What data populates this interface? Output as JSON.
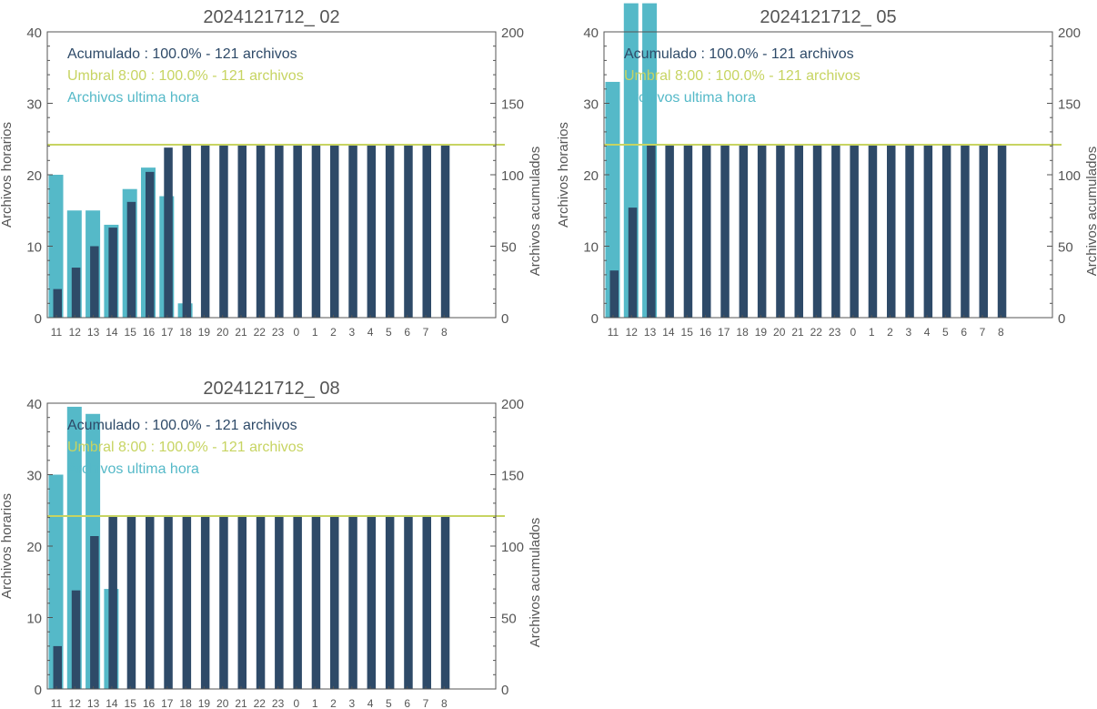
{
  "colors": {
    "hourly": "#55b9c8",
    "cumulative": "#2e4a68",
    "threshold": "#c7d462",
    "axis": "#555555"
  },
  "chart_data": [
    {
      "type": "bar",
      "title": "2024121712_ 02",
      "categories": [
        "11",
        "12",
        "13",
        "14",
        "15",
        "16",
        "17",
        "18",
        "19",
        "20",
        "21",
        "22",
        "23",
        "0",
        "1",
        "2",
        "3",
        "4",
        "5",
        "6",
        "7",
        "8"
      ],
      "series": [
        {
          "name": "Archivos ultima hora",
          "axis": "left",
          "values": [
            20,
            15,
            15,
            13,
            18,
            21,
            17,
            2,
            0,
            0,
            0,
            0,
            0,
            0,
            0,
            0,
            0,
            0,
            0,
            0,
            0,
            0
          ]
        },
        {
          "name": "Acumulado",
          "axis": "right",
          "values": [
            20,
            35,
            50,
            63,
            81,
            102,
            119,
            121,
            121,
            121,
            121,
            121,
            121,
            121,
            121,
            121,
            121,
            121,
            121,
            121,
            121,
            121
          ]
        }
      ],
      "threshold": {
        "name": "Umbral 8:00",
        "axis": "right",
        "value": 121
      },
      "legend": [
        {
          "text": "Acumulado : 100.0% - 121 archivos",
          "role": "cumulative"
        },
        {
          "text": "Umbral 8:00 : 100.0% - 121 archivos",
          "role": "threshold"
        },
        {
          "text": "Archivos ultima hora",
          "role": "hourly"
        }
      ],
      "ylabel": "Archivos horarios",
      "y2label": "Archivos acumulados",
      "ylim": [
        0,
        40
      ],
      "y2lim": [
        0,
        200
      ],
      "yticks": [
        0,
        10,
        20,
        30,
        40
      ],
      "y2ticks": [
        0,
        50,
        100,
        150,
        200
      ],
      "legend_position": "top-left"
    },
    {
      "type": "bar",
      "title": "2024121712_ 05",
      "categories": [
        "11",
        "12",
        "13",
        "14",
        "15",
        "16",
        "17",
        "18",
        "19",
        "20",
        "21",
        "22",
        "23",
        "0",
        "1",
        "2",
        "3",
        "4",
        "5",
        "6",
        "7",
        "8"
      ],
      "series": [
        {
          "name": "Archivos ultima hora",
          "axis": "left",
          "values": [
            33,
            44,
            44,
            0,
            0,
            0,
            0,
            0,
            0,
            0,
            0,
            0,
            0,
            0,
            0,
            0,
            0,
            0,
            0,
            0,
            0,
            0
          ]
        },
        {
          "name": "Acumulado",
          "axis": "right",
          "values": [
            33,
            77,
            121,
            121,
            121,
            121,
            121,
            121,
            121,
            121,
            121,
            121,
            121,
            121,
            121,
            121,
            121,
            121,
            121,
            121,
            121,
            121
          ]
        }
      ],
      "threshold": {
        "name": "Umbral 8:00",
        "axis": "right",
        "value": 121
      },
      "legend": [
        {
          "text": "Acumulado : 100.0% - 121 archivos",
          "role": "cumulative"
        },
        {
          "text": "Umbral 8:00 : 100.0% - 121 archivos",
          "role": "threshold"
        },
        {
          "text": "Archivos ultima hora",
          "role": "hourly"
        }
      ],
      "ylabel": "Archivos horarios",
      "y2label": "Archivos acumulados",
      "ylim": [
        0,
        40
      ],
      "y2lim": [
        0,
        200
      ],
      "yticks": [
        0,
        10,
        20,
        30,
        40
      ],
      "y2ticks": [
        0,
        50,
        100,
        150,
        200
      ],
      "legend_position": "top-left"
    },
    {
      "type": "bar",
      "title": "2024121712_ 08",
      "categories": [
        "11",
        "12",
        "13",
        "14",
        "15",
        "16",
        "17",
        "18",
        "19",
        "20",
        "21",
        "22",
        "23",
        "0",
        "1",
        "2",
        "3",
        "4",
        "5",
        "6",
        "7",
        "8"
      ],
      "series": [
        {
          "name": "Archivos ultima hora",
          "axis": "left",
          "values": [
            30,
            39.5,
            38.5,
            14,
            0,
            0,
            0,
            0,
            0,
            0,
            0,
            0,
            0,
            0,
            0,
            0,
            0,
            0,
            0,
            0,
            0,
            0
          ]
        },
        {
          "name": "Acumulado",
          "axis": "right",
          "values": [
            30,
            69,
            107,
            121,
            121,
            121,
            121,
            121,
            121,
            121,
            121,
            121,
            121,
            121,
            121,
            121,
            121,
            121,
            121,
            121,
            121,
            121
          ]
        }
      ],
      "threshold": {
        "name": "Umbral 8:00",
        "axis": "right",
        "value": 121
      },
      "legend": [
        {
          "text": "Acumulado : 100.0% - 121 archivos",
          "role": "cumulative"
        },
        {
          "text": "Umbral 8:00 : 100.0% - 121 archivos",
          "role": "threshold"
        },
        {
          "text": "Archivos ultima hora",
          "role": "hourly"
        }
      ],
      "ylabel": "Archivos horarios",
      "y2label": "Archivos acumulados",
      "ylim": [
        0,
        40
      ],
      "y2lim": [
        0,
        200
      ],
      "yticks": [
        0,
        10,
        20,
        30,
        40
      ],
      "y2ticks": [
        0,
        50,
        100,
        150,
        200
      ],
      "legend_position": "top-left"
    }
  ]
}
